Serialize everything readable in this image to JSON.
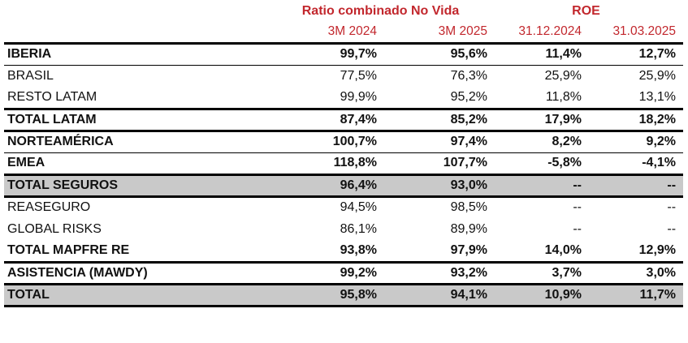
{
  "colors": {
    "header_red": "#C2272D",
    "shaded_row_bg": "#C9C9C9",
    "text": "#111111",
    "rule_black": "#000000"
  },
  "chart_data": {
    "type": "table",
    "header_groups": [
      {
        "label": "Ratio combinado No Vida",
        "span": 2
      },
      {
        "label": "ROE",
        "span": 2
      }
    ],
    "columns": [
      "3M 2024",
      "3M 2025",
      "31.12.2024",
      "31.03.2025"
    ],
    "rows": [
      {
        "label": "IBERIA",
        "values": [
          "99,7%",
          "95,6%",
          "11,4%",
          "12,7%"
        ],
        "bold": true,
        "shaded": false,
        "border_bottom": "thin"
      },
      {
        "label": "BRASIL",
        "values": [
          "77,5%",
          "76,3%",
          "25,9%",
          "25,9%"
        ],
        "bold": false,
        "shaded": false,
        "border_bottom": "none"
      },
      {
        "label": "RESTO LATAM",
        "values": [
          "99,9%",
          "95,2%",
          "11,8%",
          "13,1%"
        ],
        "bold": false,
        "shaded": false,
        "border_bottom": "thick"
      },
      {
        "label": "TOTAL LATAM",
        "values": [
          "87,4%",
          "85,2%",
          "17,9%",
          "18,2%"
        ],
        "bold": true,
        "shaded": false,
        "border_bottom": "thick"
      },
      {
        "label": "NORTEAMÉRICA",
        "values": [
          "100,7%",
          "97,4%",
          "8,2%",
          "9,2%"
        ],
        "bold": true,
        "shaded": false,
        "border_bottom": "thin"
      },
      {
        "label": "EMEA",
        "values": [
          "118,8%",
          "107,7%",
          "-5,8%",
          "-4,1%"
        ],
        "bold": true,
        "shaded": false,
        "border_bottom": "thick"
      },
      {
        "label": "TOTAL SEGUROS",
        "values": [
          "96,4%",
          "93,0%",
          "--",
          "--"
        ],
        "bold": true,
        "shaded": true,
        "border_bottom": "thick"
      },
      {
        "label": "REASEGURO",
        "values": [
          "94,5%",
          "98,5%",
          "--",
          "--"
        ],
        "bold": false,
        "shaded": false,
        "border_bottom": "none"
      },
      {
        "label": "GLOBAL RISKS",
        "values": [
          "86,1%",
          "89,9%",
          "--",
          "--"
        ],
        "bold": false,
        "shaded": false,
        "border_bottom": "none"
      },
      {
        "label": "TOTAL MAPFRE RE",
        "values": [
          "93,8%",
          "97,9%",
          "14,0%",
          "12,9%"
        ],
        "bold": true,
        "shaded": false,
        "border_bottom": "thick"
      },
      {
        "label": "ASISTENCIA (MAWDY)",
        "values": [
          "99,2%",
          "93,2%",
          "3,7%",
          "3,0%"
        ],
        "bold": true,
        "shaded": false,
        "border_bottom": "thick"
      },
      {
        "label": "TOTAL",
        "values": [
          "95,8%",
          "94,1%",
          "10,9%",
          "11,7%"
        ],
        "bold": true,
        "shaded": true,
        "border_bottom": "thick"
      }
    ]
  }
}
